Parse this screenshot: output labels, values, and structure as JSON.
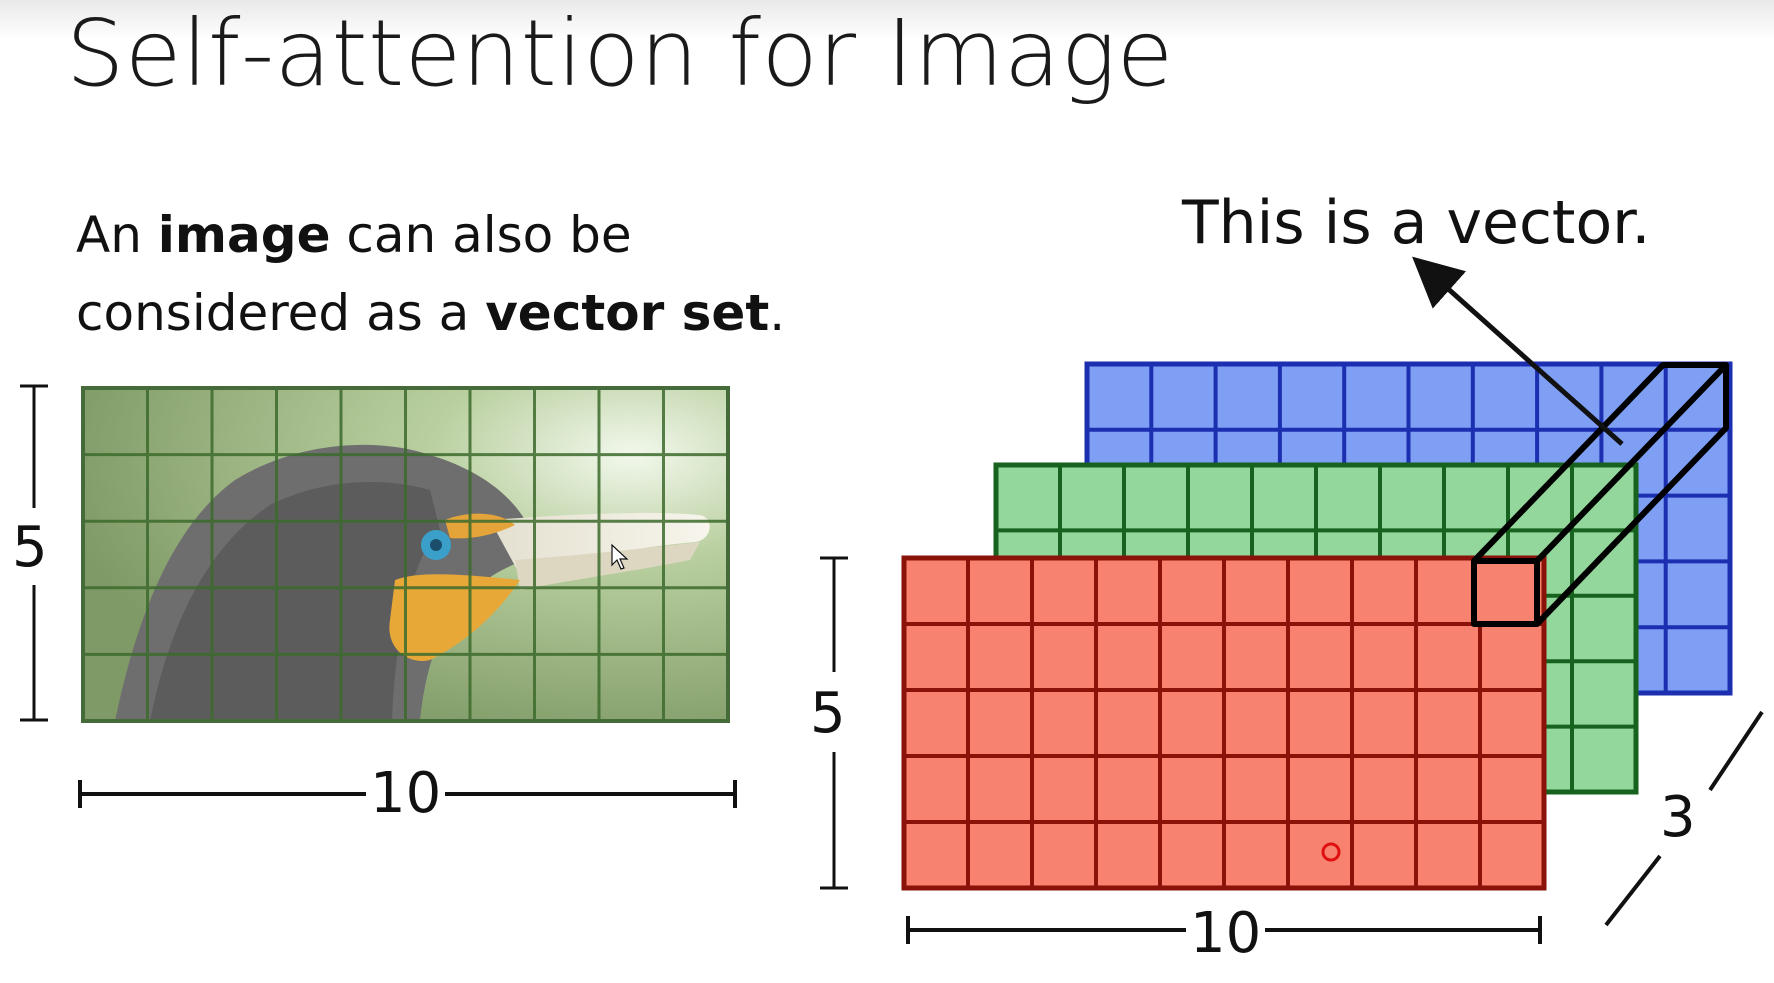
{
  "title": "Self-attention for Image",
  "intro": {
    "p1": "An ",
    "b1": "image",
    "p2": " can also be",
    "p3": "considered as a ",
    "b2": "vector set",
    "p4": "."
  },
  "left_figure": {
    "grid_cols": 10,
    "grid_rows": 5,
    "height_label": "5",
    "width_label": "10"
  },
  "right_figure": {
    "channels": [
      {
        "name": "blue",
        "color": "#7f9ff5",
        "line": "#1b2fb0"
      },
      {
        "name": "green",
        "color": "#94d79c",
        "line": "#17621f"
      },
      {
        "name": "red",
        "color": "#f7826f",
        "line": "#8a1208"
      }
    ],
    "grid_cols": 10,
    "grid_rows": 5,
    "height_label": "5",
    "width_label": "10",
    "depth_label": "3",
    "callout": "This is a vector."
  }
}
